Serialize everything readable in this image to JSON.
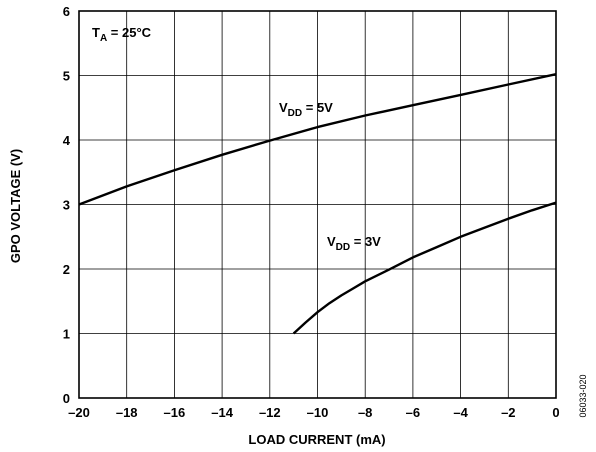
{
  "chart_data": {
    "type": "line",
    "title": "",
    "xlabel": "LOAD CURRENT (mA)",
    "ylabel": "GPO VOLTAGE (V)",
    "xlim": [
      -20,
      0
    ],
    "ylim": [
      0,
      6
    ],
    "x_ticks": [
      -20,
      -18,
      -16,
      -14,
      -12,
      -10,
      -8,
      -6,
      -4,
      -2,
      0
    ],
    "x_tick_labels": [
      "–20",
      "–18",
      "–16",
      "–14",
      "–12",
      "–10",
      "–8",
      "–6",
      "–4",
      "–2",
      "0"
    ],
    "y_ticks": [
      0,
      1,
      2,
      3,
      4,
      5,
      6
    ],
    "y_tick_labels": [
      "0",
      "1",
      "2",
      "3",
      "4",
      "5",
      "6"
    ],
    "grid": true,
    "line_color": "#000000",
    "annotations": {
      "temperature": {
        "base": "T",
        "sub": "A",
        "rest": " = 25°C"
      },
      "vdd5": {
        "base": "V",
        "sub": "DD",
        "rest": " = 5V"
      },
      "vdd3": {
        "base": "V",
        "sub": "DD",
        "rest": " = 3V"
      }
    },
    "figure_id": "06033-020",
    "series": [
      {
        "id": "vdd5",
        "x": [
          -20,
          -18,
          -16,
          -14,
          -12,
          -10,
          -8,
          -6,
          -4,
          -2,
          0
        ],
        "y": [
          3.0,
          3.28,
          3.53,
          3.77,
          3.99,
          4.2,
          4.38,
          4.54,
          4.7,
          4.86,
          5.02
        ]
      },
      {
        "id": "vdd3",
        "x": [
          -11,
          -10.5,
          -10,
          -9.5,
          -9,
          -8.5,
          -8,
          -7,
          -6,
          -5,
          -4,
          -3,
          -2,
          -1,
          0
        ],
        "y": [
          1.0,
          1.17,
          1.33,
          1.47,
          1.59,
          1.7,
          1.81,
          1.99,
          2.18,
          2.34,
          2.5,
          2.64,
          2.78,
          2.91,
          3.03
        ]
      }
    ]
  }
}
